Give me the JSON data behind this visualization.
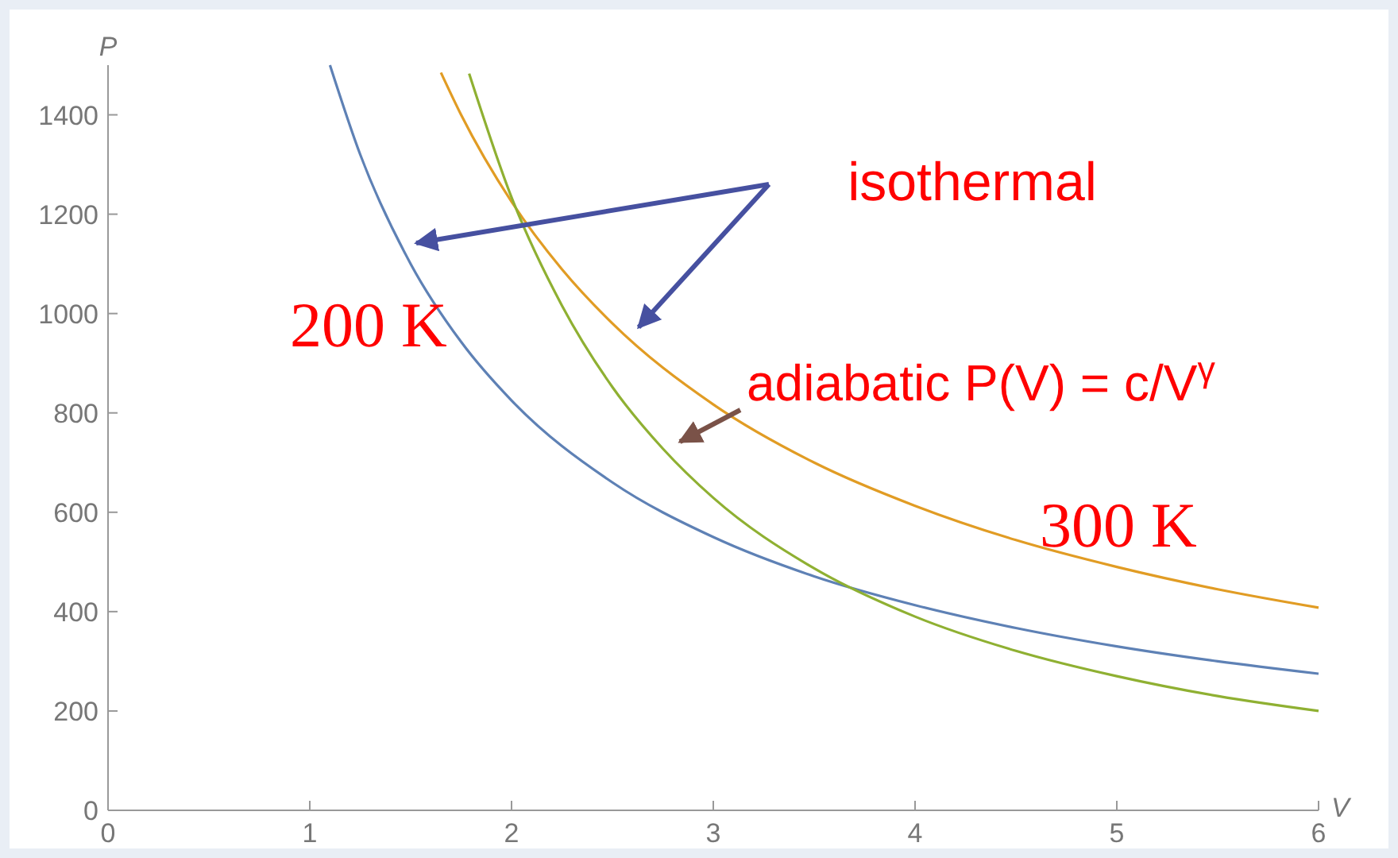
{
  "chart_data": {
    "type": "line",
    "xlabel": "V",
    "ylabel": "P",
    "xlim": [
      0,
      6
    ],
    "ylim": [
      0,
      1500
    ],
    "xticks": [
      0,
      1,
      2,
      3,
      4,
      5,
      6
    ],
    "yticks": [
      0,
      200,
      400,
      600,
      800,
      1000,
      1200,
      1400
    ],
    "grid": false,
    "marker": "none",
    "line_style": "solid",
    "series": [
      {
        "color": "#5e81b5",
        "x": [
          1.1,
          1.25,
          1.5,
          1.75,
          2,
          2.5,
          3,
          3.5,
          4,
          4.5,
          5,
          5.5,
          6
        ],
        "values": [
          1500,
          1320,
          1100,
          943,
          825,
          660,
          550,
          471,
          413,
          367,
          330,
          300,
          275
        ]
      },
      {
        "color": "#e19c24",
        "x": [
          1.65,
          1.75,
          2,
          2.25,
          2.5,
          3,
          3.5,
          4,
          4.5,
          5,
          5.5,
          6
        ],
        "values": [
          1485,
          1400,
          1225,
          1089,
          980,
          817,
          700,
          613,
          544,
          490,
          445,
          408
        ]
      },
      {
        "color": "#8fb032",
        "x": [
          1.79,
          2,
          2.25,
          2.5,
          2.75,
          3,
          3.5,
          4,
          4.5,
          5,
          5.5,
          6
        ],
        "values": [
          1483,
          1234,
          1016,
          852,
          728,
          629,
          487,
          390,
          321,
          270,
          230,
          200
        ]
      }
    ],
    "annotations": [
      "isothermal",
      "200 K",
      "300 K",
      "adiabatic P(V) = c/V$^{γ}$"
    ]
  }
}
